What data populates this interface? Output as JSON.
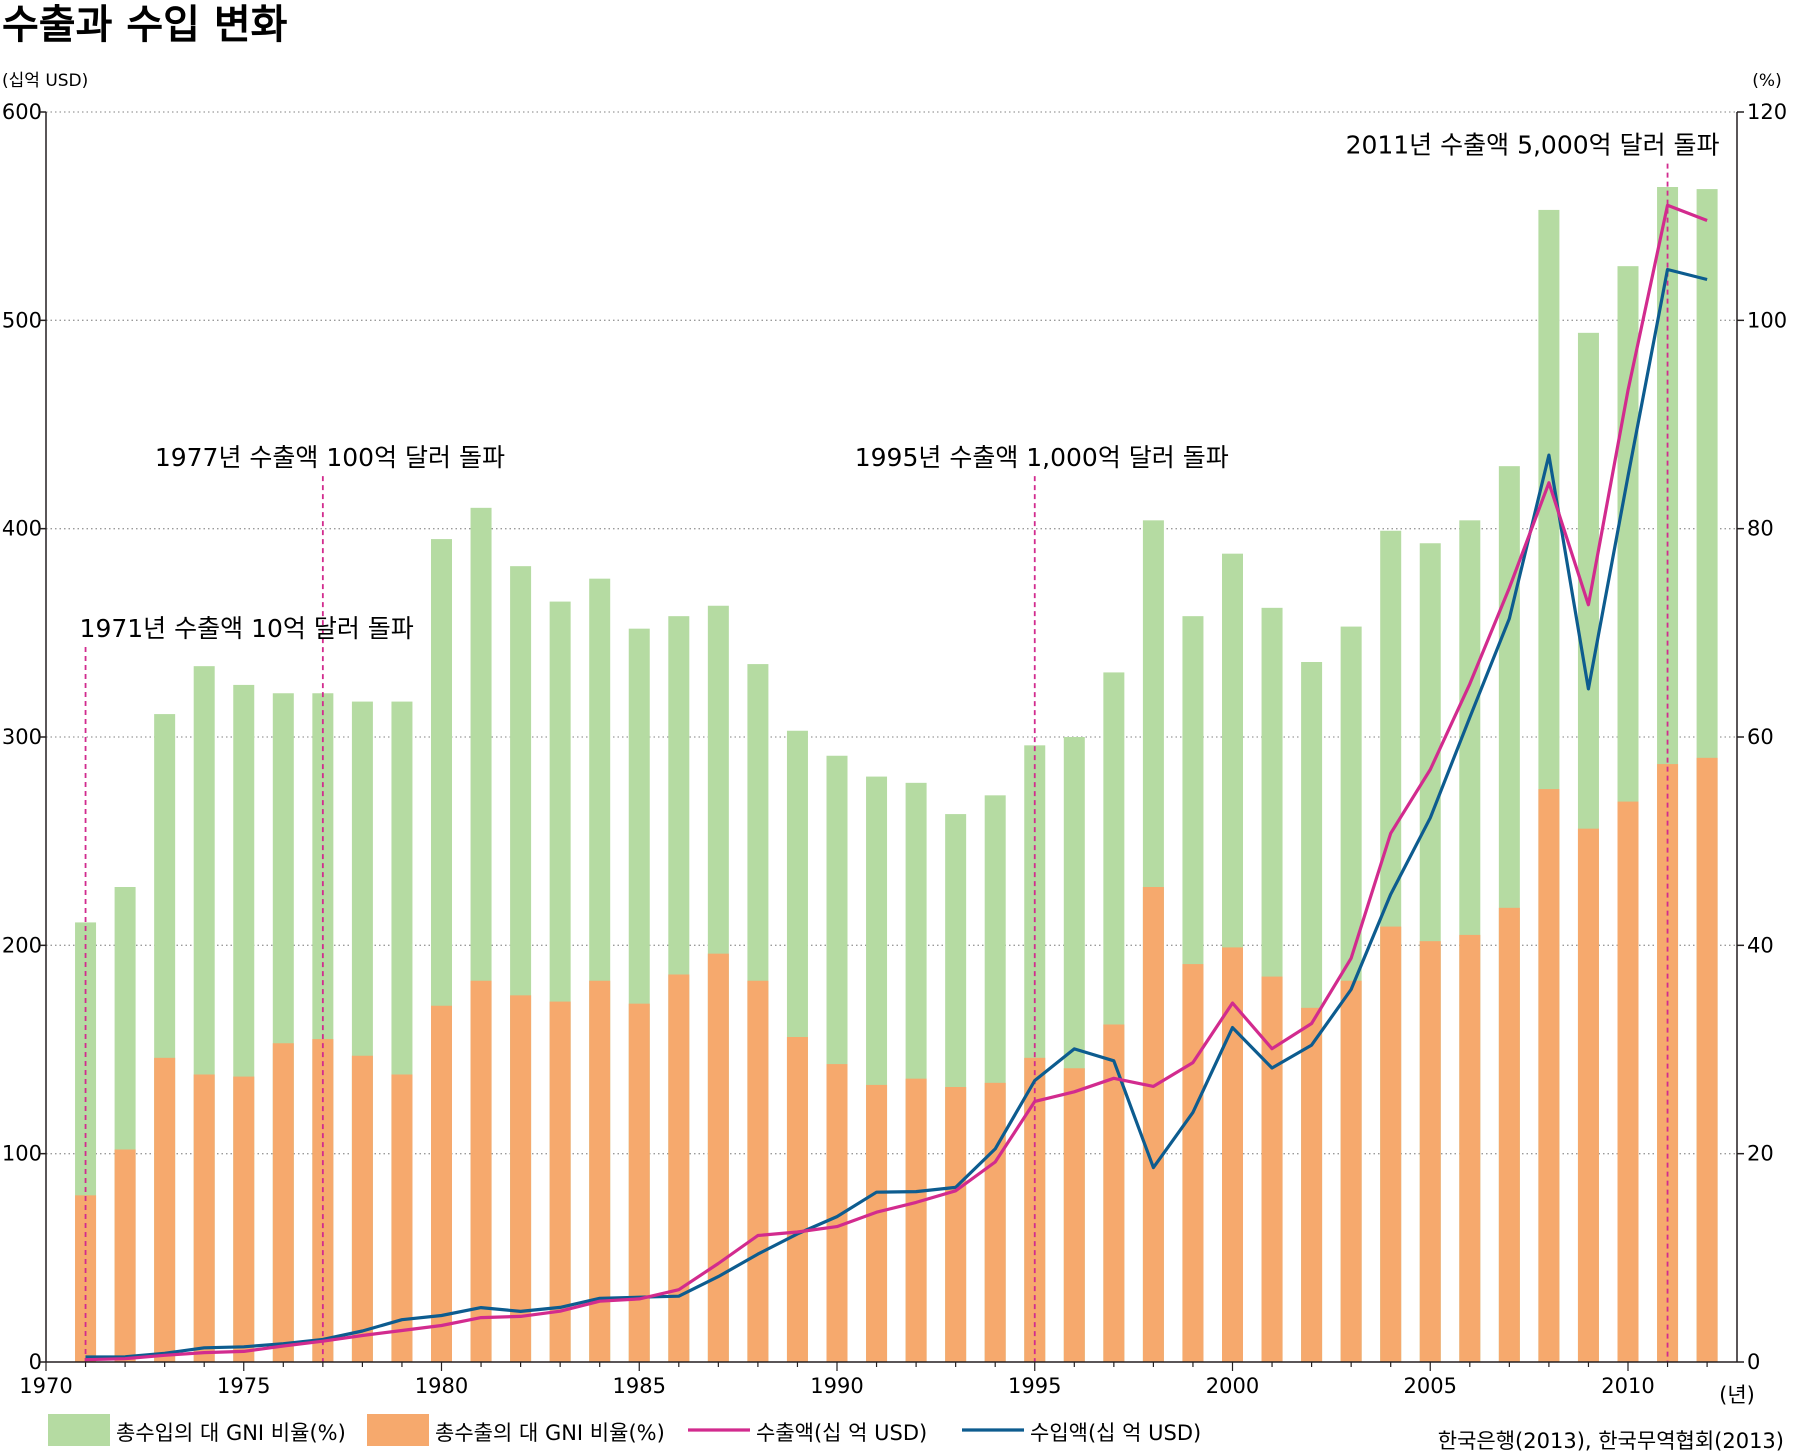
{
  "chart_data": {
    "type": "bar+line",
    "title": "수출과 수입 변화",
    "left_unit": "(십억 USD)",
    "right_unit": "(%)",
    "x_unit": "(년)",
    "source": "한국은행(2013), 한국무역협회(2013)",
    "ylim_left": [
      0,
      600
    ],
    "ylim_right": [
      0,
      120
    ],
    "left_ticks": [
      0,
      100,
      200,
      300,
      400,
      500,
      600
    ],
    "right_ticks": [
      0,
      20,
      40,
      60,
      80,
      100,
      120
    ],
    "x_ticks": [
      1970,
      1975,
      1980,
      1985,
      1990,
      1995,
      2000,
      2005,
      2010
    ],
    "grid": "horizontal dotted",
    "legend_position": "bottom",
    "years": [
      1971,
      1972,
      1973,
      1974,
      1975,
      1976,
      1977,
      1978,
      1979,
      1980,
      1981,
      1982,
      1983,
      1984,
      1985,
      1986,
      1987,
      1988,
      1989,
      1990,
      1991,
      1992,
      1993,
      1994,
      1995,
      1996,
      1997,
      1998,
      1999,
      2000,
      2001,
      2002,
      2003,
      2004,
      2005,
      2006,
      2007,
      2008,
      2009,
      2010,
      2011,
      2012
    ],
    "series": [
      {
        "name": "총수입의 대 GNI 비율(%)",
        "axis": "right",
        "type": "bar",
        "color": "#b5dba2",
        "values": [
          42.2,
          45.6,
          62.2,
          66.8,
          65.0,
          64.2,
          64.2,
          63.4,
          63.4,
          79.0,
          82.0,
          76.4,
          73.0,
          75.2,
          70.4,
          71.6,
          72.6,
          67.0,
          60.6,
          58.2,
          56.2,
          55.6,
          52.6,
          54.4,
          59.2,
          60.0,
          66.2,
          80.8,
          71.6,
          77.6,
          72.4,
          67.2,
          70.6,
          79.8,
          78.6,
          80.8,
          86.0,
          110.6,
          98.8,
          105.2,
          112.8,
          112.6
        ]
      },
      {
        "name": "총수출의 대 GNI 비율(%)",
        "axis": "right",
        "type": "bar",
        "color": "#f6a96d",
        "values": [
          16.0,
          20.4,
          29.2,
          27.6,
          27.4,
          30.6,
          31.0,
          29.4,
          27.6,
          34.2,
          36.6,
          35.2,
          34.6,
          36.6,
          34.4,
          37.2,
          39.2,
          36.6,
          31.2,
          28.6,
          26.6,
          27.2,
          26.4,
          26.8,
          29.2,
          28.2,
          32.4,
          45.6,
          38.2,
          39.8,
          37.0,
          34.0,
          36.6,
          41.8,
          40.4,
          41.0,
          43.6,
          55.0,
          51.2,
          53.8,
          57.4,
          58.0
        ]
      },
      {
        "name": "수출액(십 억 USD)",
        "axis": "left",
        "type": "line",
        "color": "#d22b8e",
        "values": [
          1.1,
          1.6,
          3.2,
          4.5,
          5.1,
          7.7,
          10.0,
          12.7,
          15.1,
          17.5,
          21.3,
          21.9,
          24.4,
          29.2,
          30.3,
          34.7,
          47.3,
          60.7,
          62.4,
          65.0,
          71.9,
          76.6,
          82.2,
          96.0,
          125.1,
          129.7,
          136.2,
          132.3,
          143.7,
          172.3,
          150.4,
          162.5,
          193.8,
          253.8,
          284.4,
          325.5,
          371.5,
          422.0,
          363.5,
          466.4,
          555.2,
          547.9
        ]
      },
      {
        "name": "수입액(십 억 USD)",
        "axis": "left",
        "type": "line",
        "color": "#0d5c8f",
        "values": [
          2.4,
          2.5,
          4.2,
          6.8,
          7.3,
          8.8,
          10.8,
          14.9,
          20.3,
          22.3,
          26.1,
          24.3,
          26.2,
          30.6,
          31.1,
          31.6,
          41.0,
          51.8,
          61.5,
          69.8,
          81.5,
          81.8,
          83.8,
          102.3,
          135.1,
          150.3,
          144.6,
          93.3,
          119.8,
          160.5,
          141.1,
          152.1,
          178.8,
          224.5,
          261.2,
          309.4,
          356.8,
          435.3,
          323.1,
          425.2,
          524.4,
          519.6
        ]
      }
    ],
    "annotations": [
      {
        "year": 1971,
        "text": "1971년 수출액 10억 달러 돌파",
        "label_value": 348
      },
      {
        "year": 1977,
        "text": "1977년 수출액 100억 달러 돌파",
        "label_value": 430
      },
      {
        "year": 1995,
        "text": "1995년 수출액 1,000억 달러 돌파",
        "label_value": 430
      },
      {
        "year": 2011,
        "text": "2011년 수출액 5,000억 달러 돌파",
        "label_value": 580
      }
    ]
  }
}
